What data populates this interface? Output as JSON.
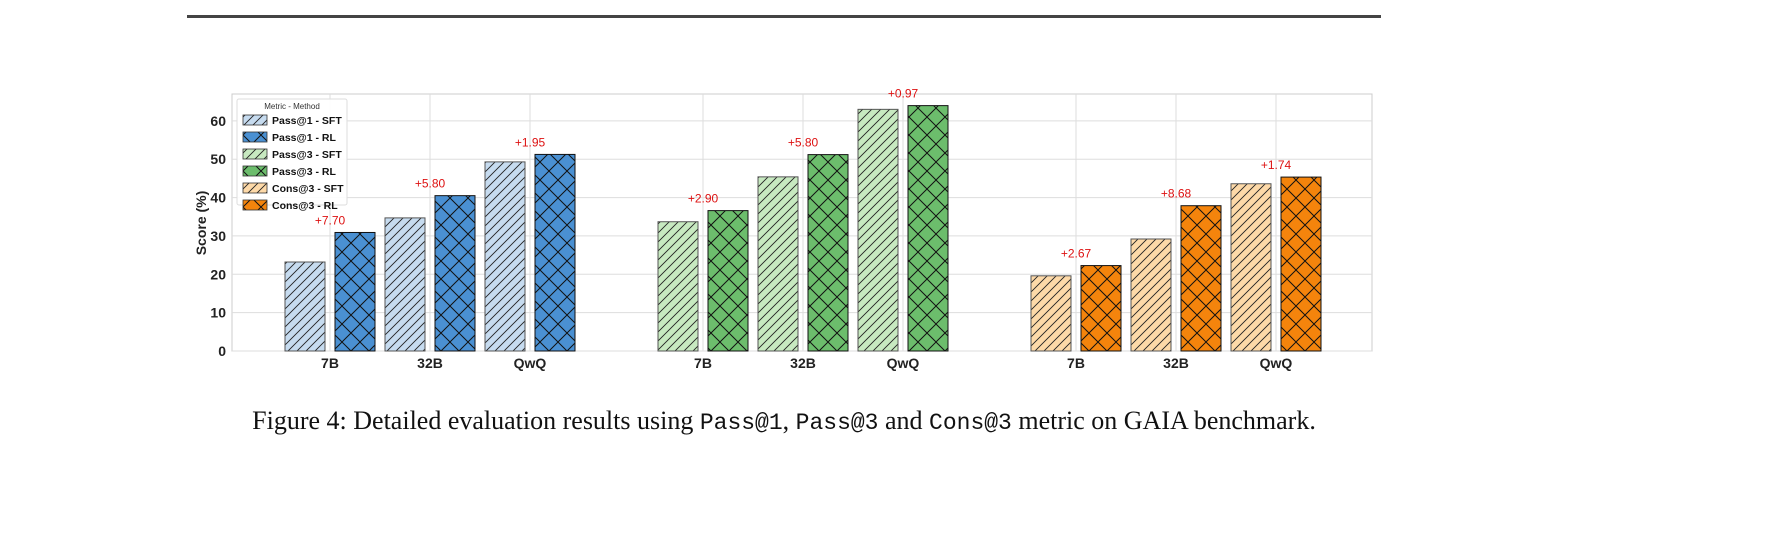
{
  "chart_data": {
    "type": "bar",
    "ylabel": "Score (%)",
    "ylim": [
      0,
      67
    ],
    "yticks": [
      0,
      10,
      20,
      30,
      40,
      50,
      60
    ],
    "grid": true,
    "legend": {
      "title": "Metric - Method",
      "placement": "top-left",
      "entries": [
        "Pass@1 - SFT",
        "Pass@1 - RL",
        "Pass@3 - SFT",
        "Pass@3 - RL",
        "Cons@3 - SFT",
        "Cons@3 - RL"
      ]
    },
    "groups": [
      {
        "metric": "Pass@1",
        "colors": {
          "SFT": "#c6dbef",
          "RL": "#4a90d2"
        },
        "categories": [
          "7B",
          "32B",
          "QwQ"
        ],
        "series": [
          {
            "name": "Pass@1 - SFT",
            "values": [
              23.2,
              34.7,
              49.3
            ]
          },
          {
            "name": "Pass@1 - RL",
            "values": [
              30.9,
              40.5,
              51.25
            ]
          }
        ],
        "annotations": [
          "+7.70",
          "+5.80",
          "+1.95"
        ]
      },
      {
        "metric": "Pass@3",
        "colors": {
          "SFT": "#c7e9c0",
          "RL": "#6cbd6c"
        },
        "categories": [
          "7B",
          "32B",
          "QwQ"
        ],
        "series": [
          {
            "name": "Pass@3 - SFT",
            "values": [
              33.7,
              45.4,
              63.0
            ]
          },
          {
            "name": "Pass@3 - RL",
            "values": [
              36.6,
              51.2,
              63.97
            ]
          }
        ],
        "annotations": [
          "+2.90",
          "+5.80",
          "+0.97"
        ]
      },
      {
        "metric": "Cons@3",
        "colors": {
          "SFT": "#fdd9a8",
          "RL": "#f4840c"
        },
        "categories": [
          "7B",
          "32B",
          "QwQ"
        ],
        "series": [
          {
            "name": "Cons@3 - SFT",
            "values": [
              19.6,
              29.2,
              43.6
            ]
          },
          {
            "name": "Cons@3 - RL",
            "values": [
              22.27,
              37.88,
              45.34
            ]
          }
        ],
        "annotations": [
          "+2.67",
          "+8.68",
          "+1.74"
        ]
      }
    ],
    "annotation_color": "#dd1111"
  },
  "caption": {
    "prefix": "Figure 4: Detailed evaluation results using ",
    "m1": "Pass@1",
    "sep1": ", ",
    "m2": "Pass@3",
    "sep2": " and ",
    "m3": "Cons@3",
    "suffix": " metric on GAIA benchmark."
  }
}
